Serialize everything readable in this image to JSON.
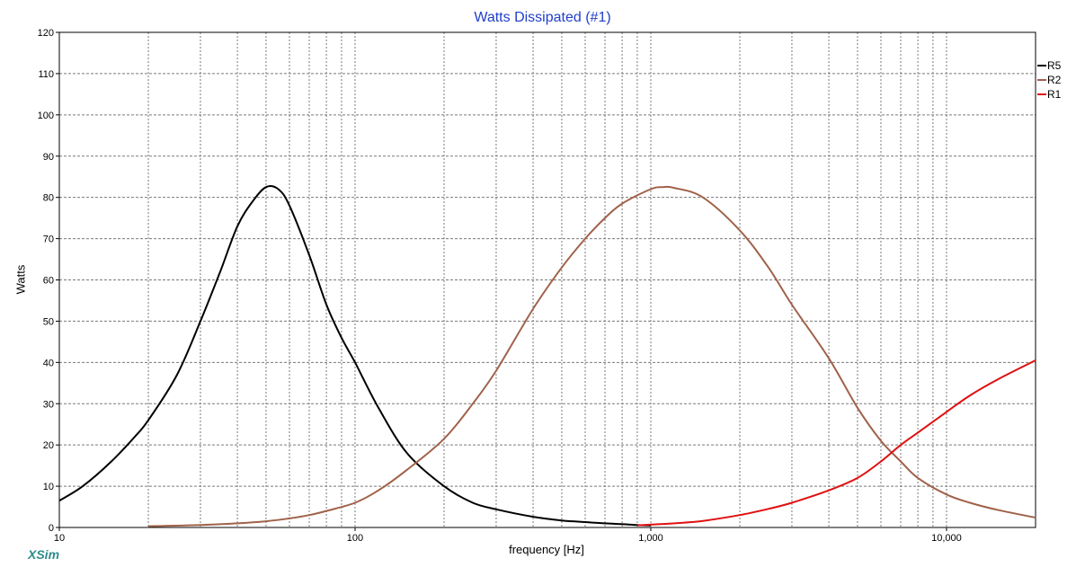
{
  "app": {
    "brand": "XSim"
  },
  "colors": {
    "title": "#1f3fc9",
    "brand": "#2e8c8c",
    "R5": "#000000",
    "R2": "#a0624a",
    "R1": "#e01010",
    "grid": "#7a7a7a"
  },
  "chart_data": {
    "type": "line",
    "title": "Watts Dissipated (#1)",
    "xlabel": "frequency [Hz]",
    "ylabel": "Watts",
    "x_scale": "log",
    "xlim": [
      10,
      20000
    ],
    "ylim": [
      0,
      120
    ],
    "grid": true,
    "legend_position": "top-right",
    "y_ticks": [
      0,
      10,
      20,
      30,
      40,
      50,
      60,
      70,
      80,
      90,
      100,
      110,
      120
    ],
    "x_tick_values": [
      10,
      100,
      1000,
      10000
    ],
    "x_tick_labels": [
      "10",
      "100",
      "1,000",
      "10,000"
    ],
    "series": [
      {
        "name": "R5",
        "color": "#000000",
        "x": [
          10,
          12,
          15,
          18,
          20,
          25,
          30,
          35,
          40,
          45,
          50,
          55,
          60,
          70,
          80,
          90,
          100,
          120,
          150,
          200,
          250,
          300,
          400,
          500,
          600,
          700,
          800,
          900,
          1000
        ],
        "y": [
          6.5,
          10,
          16,
          22,
          26,
          37,
          50,
          62,
          73,
          79,
          82.5,
          82,
          78,
          66,
          54,
          46,
          40,
          29,
          18,
          10,
          6,
          4.4,
          2.6,
          1.7,
          1.3,
          1.0,
          0.8,
          0.6,
          0.5
        ]
      },
      {
        "name": "R2",
        "color": "#a0624a",
        "x": [
          20,
          30,
          40,
          50,
          60,
          70,
          80,
          100,
          120,
          150,
          200,
          250,
          300,
          400,
          500,
          600,
          700,
          800,
          1000,
          1100,
          1200,
          1500,
          2000,
          2500,
          3000,
          4000,
          5000,
          6000,
          7000,
          8000,
          10000,
          12000,
          15000,
          20000
        ],
        "y": [
          0.3,
          0.6,
          1.0,
          1.5,
          2.2,
          3.0,
          4.0,
          6.0,
          9.0,
          14,
          21.5,
          30,
          38,
          53,
          63,
          70,
          75,
          78.5,
          82,
          82.5,
          82.3,
          80,
          72,
          63,
          54,
          41,
          29,
          21,
          16,
          12,
          8,
          6,
          4.2,
          2.4
        ]
      },
      {
        "name": "R1",
        "color": "#e01010",
        "x": [
          900,
          1000,
          1200,
          1500,
          2000,
          2500,
          3000,
          4000,
          5000,
          6000,
          7000,
          8000,
          10000,
          12000,
          15000,
          20000
        ],
        "y": [
          0.5,
          0.7,
          1.0,
          1.6,
          3.0,
          4.5,
          6.0,
          9.0,
          12,
          16,
          20,
          23,
          28,
          32,
          36,
          40.5
        ]
      }
    ]
  }
}
